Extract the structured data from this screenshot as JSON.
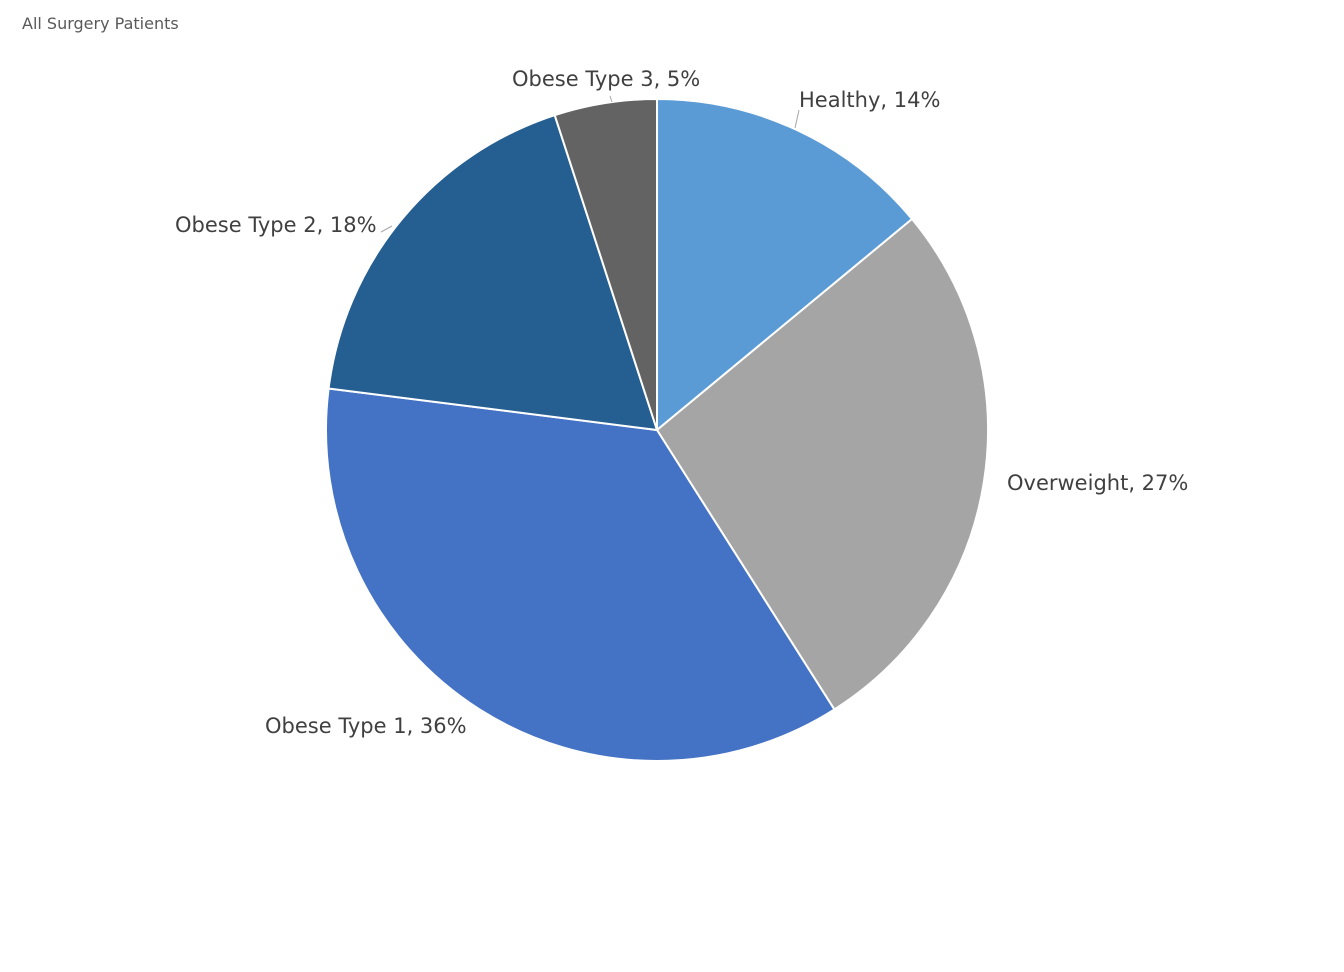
{
  "chart_data": {
    "type": "pie",
    "title": "All Surgery Patients",
    "slices": [
      {
        "name": "Healthy",
        "value": 14,
        "label": "Healthy, 14%",
        "color": "#5B9BD5"
      },
      {
        "name": "Overweight",
        "value": 27,
        "label": "Overweight, 27%",
        "color": "#A5A5A5"
      },
      {
        "name": "Obese Type 1",
        "value": 36,
        "label": "Obese Type 1, 36%",
        "color": "#4472C4"
      },
      {
        "name": "Obese Type 2",
        "value": 18,
        "label": "Obese Type 2, 18%",
        "color": "#255E91"
      },
      {
        "name": "Obese Type 3",
        "value": 5,
        "label": "Obese Type 3, 5%",
        "color": "#636363"
      }
    ],
    "start": "12 o'clock",
    "direction": "clockwise",
    "legend": "none",
    "data_labels": "category name and percentage"
  }
}
